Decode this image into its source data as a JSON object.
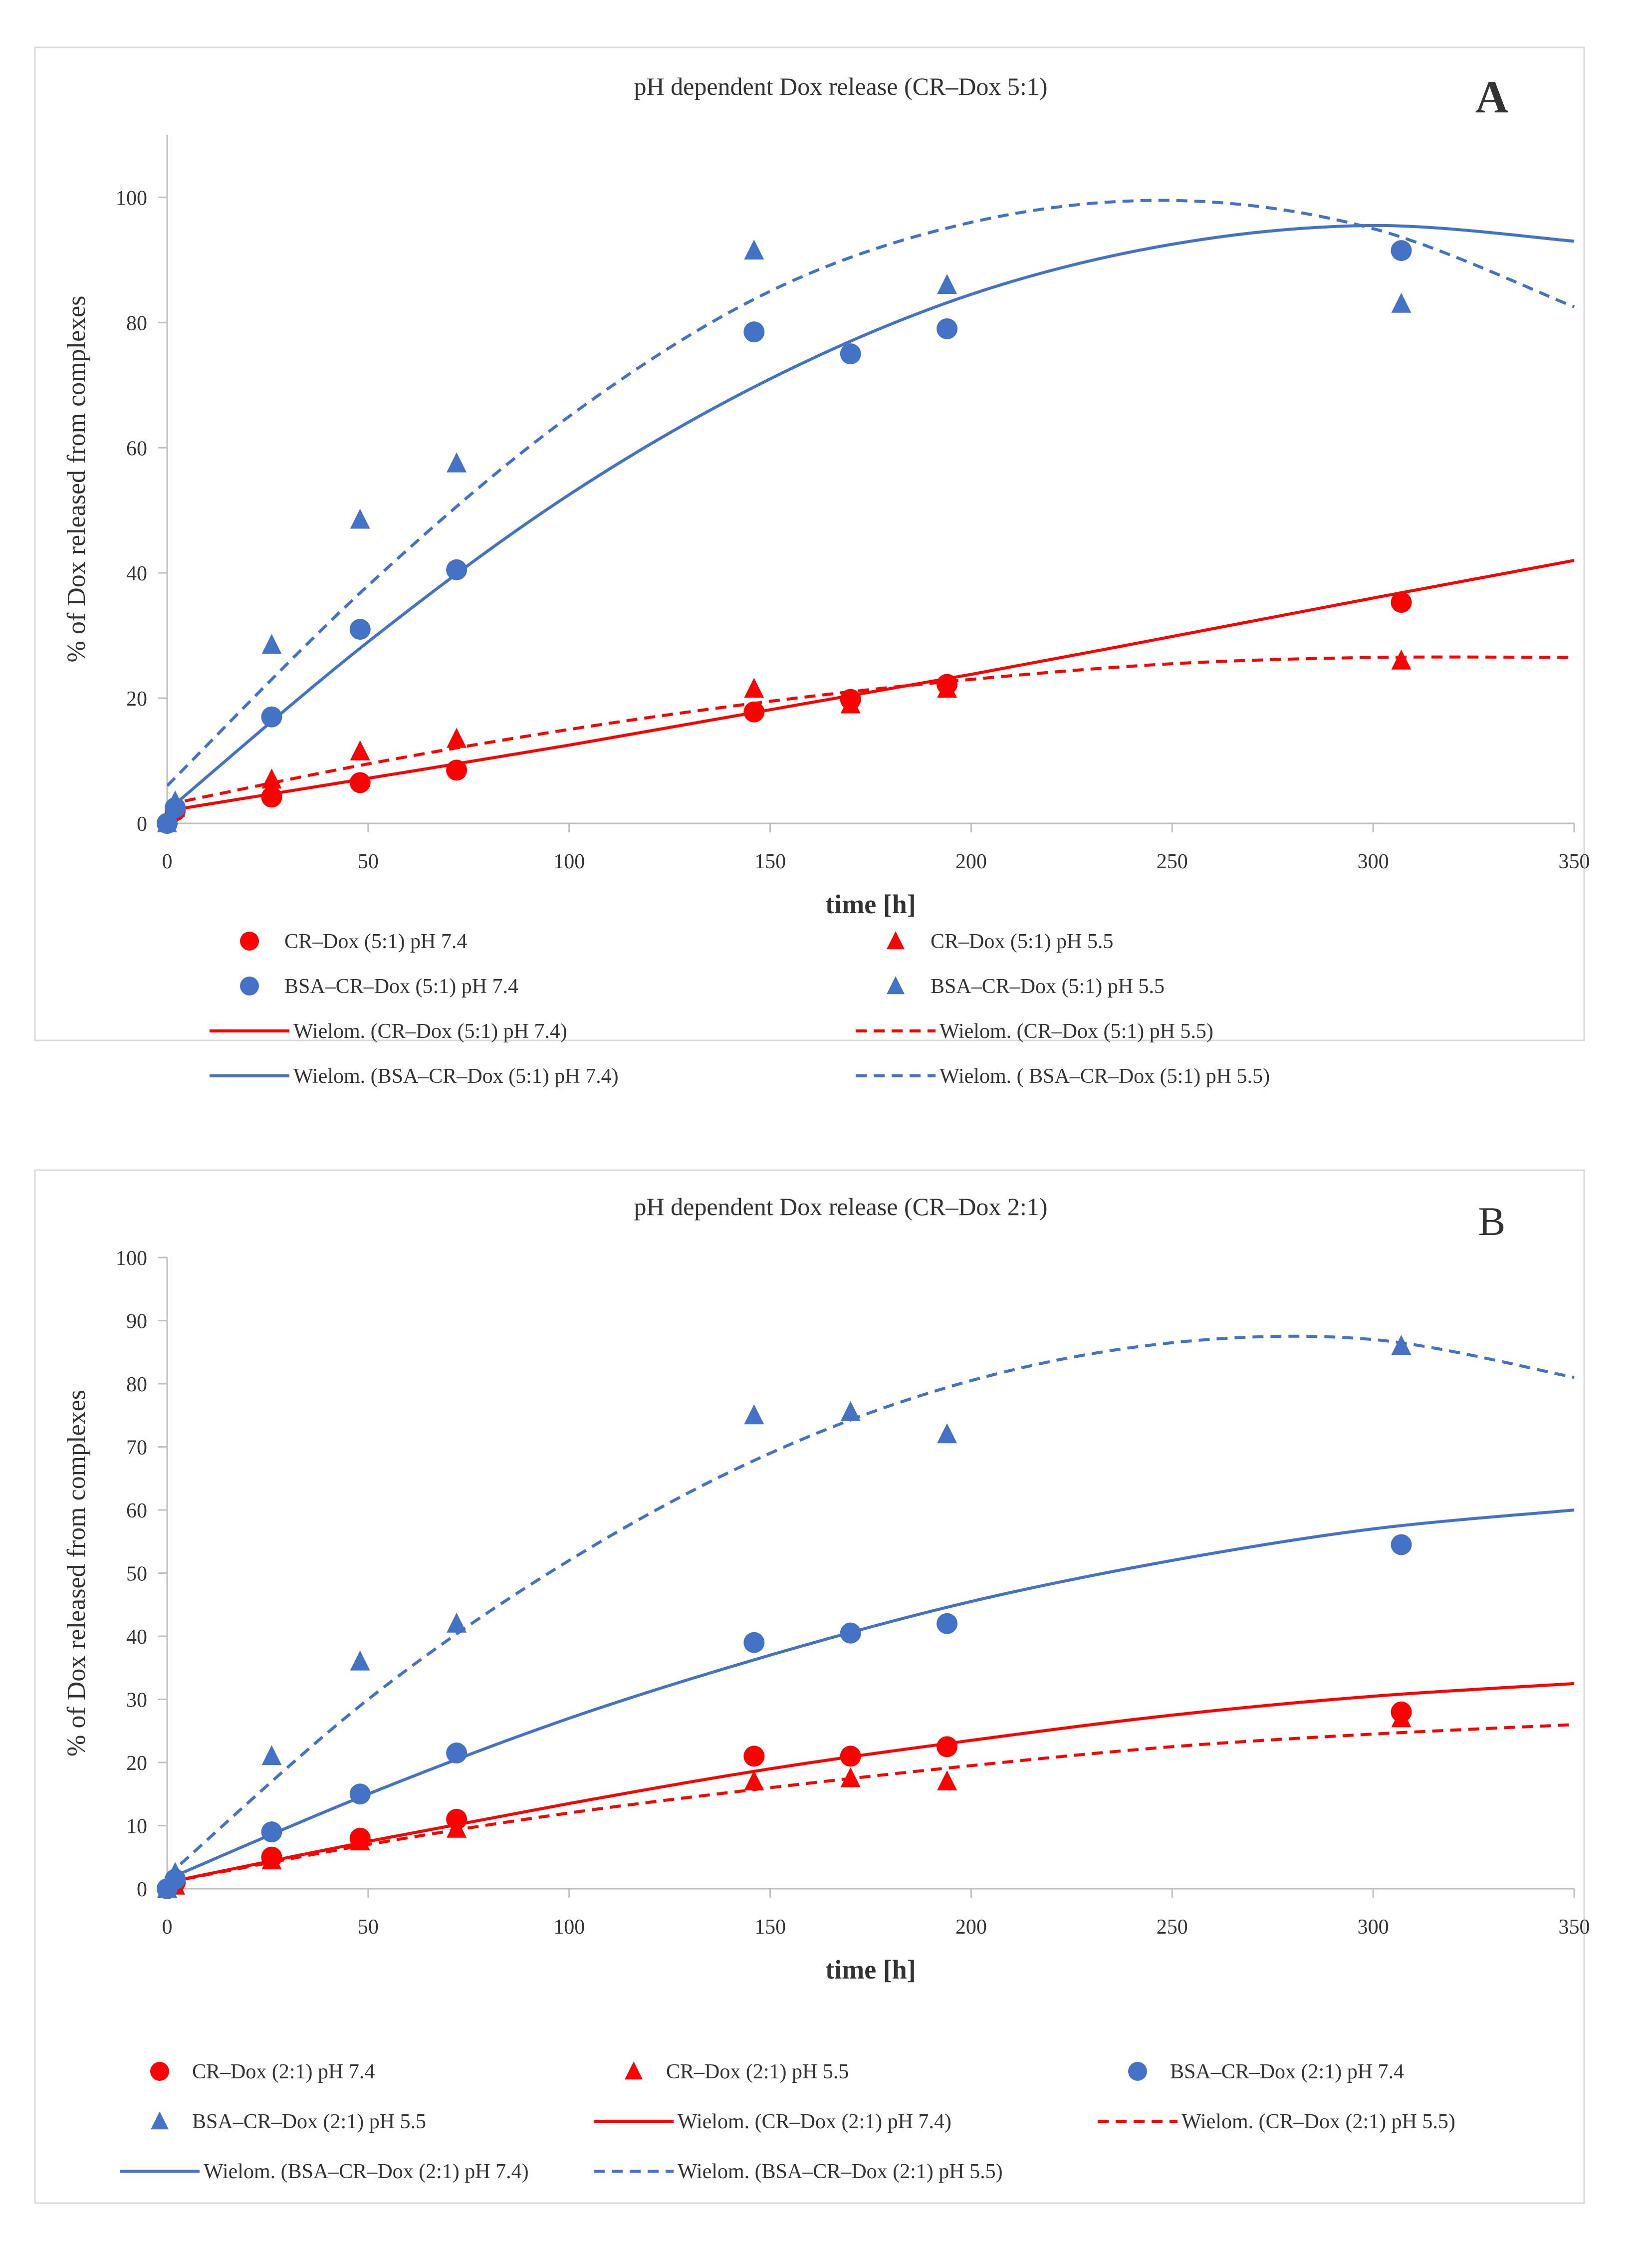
{
  "colors": {
    "red": "#ff0000",
    "blue": "#4472c4",
    "axis": "#bfbfbf",
    "text": "#333333",
    "border": "#d9d9d9"
  },
  "chart_data": [
    {
      "type": "scatter",
      "panel_label": "A",
      "title": "pH dependent Dox release (CR–Dox 5:1)",
      "xlabel": "time [h]",
      "ylabel": "% of Dox released from complexes",
      "xlim": [
        0,
        350
      ],
      "ylim": [
        0,
        110
      ],
      "xticks": [
        0,
        50,
        100,
        150,
        200,
        250,
        300,
        350
      ],
      "yticks": [
        0,
        20,
        40,
        60,
        80,
        100
      ],
      "grid": false,
      "legend_position": "bottom",
      "series": [
        {
          "name": "CR–Dox (5:1) pH 7.4",
          "kind": "points",
          "marker": "circle",
          "color": "#ff0000",
          "x": [
            0,
            2,
            26,
            48,
            72,
            146,
            170,
            194,
            307
          ],
          "y": [
            0,
            2,
            4.2,
            6.5,
            8.5,
            17.8,
            19.8,
            22.2,
            35.3
          ]
        },
        {
          "name": "CR–Dox (5:1) pH 5.5",
          "kind": "points",
          "marker": "triangle",
          "color": "#ff0000",
          "x": [
            0,
            2,
            26,
            48,
            72,
            146,
            170,
            194,
            307
          ],
          "y": [
            0,
            2.5,
            7,
            11.5,
            13.5,
            21.5,
            19,
            21.5,
            26
          ]
        },
        {
          "name": "BSA–CR–Dox (5:1) pH 7.4",
          "kind": "points",
          "marker": "circle",
          "color": "#4472c4",
          "x": [
            0,
            2,
            26,
            48,
            72,
            146,
            170,
            194,
            307
          ],
          "y": [
            0,
            2.5,
            17,
            31,
            40.5,
            78.5,
            75,
            79,
            91.5
          ]
        },
        {
          "name": "BSA–CR–Dox (5:1) pH 5.5",
          "kind": "points",
          "marker": "triangle",
          "color": "#4472c4",
          "x": [
            0,
            2,
            26,
            48,
            72,
            146,
            194,
            307
          ],
          "y": [
            0,
            3.5,
            28.5,
            48.5,
            57.5,
            91.5,
            86,
            83
          ]
        },
        {
          "name": "Wielom. (CR–Dox (5:1) pH 7.4)",
          "kind": "fit",
          "dash": "solid",
          "color": "#ff0000",
          "x": [
            0,
            100,
            200,
            300,
            350
          ],
          "y": [
            2,
            12.5,
            23.8,
            36,
            42
          ]
        },
        {
          "name": "Wielom. (CR–Dox (5:1) pH 5.5)",
          "kind": "fit",
          "dash": "dashed",
          "color": "#ff0000",
          "x": [
            0,
            50,
            100,
            150,
            200,
            250,
            300,
            350
          ],
          "y": [
            3,
            9.5,
            15,
            19.5,
            23,
            25.5,
            26.5,
            26.5
          ]
        },
        {
          "name": "Wielom. (BSA–CR–Dox (5:1) pH 7.4)",
          "kind": "fit",
          "dash": "solid",
          "color": "#4472c4",
          "x": [
            0,
            50,
            100,
            150,
            200,
            250,
            300,
            350
          ],
          "y": [
            2,
            29,
            52.5,
            71,
            84.5,
            92.5,
            95.5,
            93
          ]
        },
        {
          "name": "Wielom. ( BSA–CR–Dox (5:1) pH 5.5)",
          "kind": "fit",
          "dash": "dashed",
          "color": "#4472c4",
          "x": [
            0,
            50,
            100,
            150,
            200,
            250,
            300,
            350
          ],
          "y": [
            6,
            38,
            65,
            85,
            96,
            99.5,
            95,
            82.5
          ]
        }
      ]
    },
    {
      "type": "scatter",
      "panel_label": "B",
      "title": "pH dependent Dox release (CR–Dox 2:1)",
      "xlabel": "time [h]",
      "ylabel": "% of Dox released from complexes",
      "xlim": [
        0,
        350
      ],
      "ylim": [
        0,
        100
      ],
      "xticks": [
        0,
        50,
        100,
        150,
        200,
        250,
        300,
        350
      ],
      "yticks": [
        0,
        10,
        20,
        30,
        40,
        50,
        60,
        70,
        80,
        90,
        100
      ],
      "grid": false,
      "legend_position": "bottom",
      "series": [
        {
          "name": "CR–Dox (2:1) pH 7.4",
          "kind": "points",
          "marker": "circle",
          "color": "#ff0000",
          "x": [
            0,
            2,
            26,
            48,
            72,
            146,
            170,
            194,
            307
          ],
          "y": [
            0,
            1,
            5,
            8,
            11,
            21,
            21,
            22.5,
            28
          ]
        },
        {
          "name": "CR–Dox (2:1) pH 5.5",
          "kind": "points",
          "marker": "triangle",
          "color": "#ff0000",
          "x": [
            0,
            2,
            26,
            48,
            72,
            146,
            170,
            194,
            307
          ],
          "y": [
            0,
            0.5,
            4.5,
            7.5,
            9.5,
            17,
            17.5,
            17,
            27
          ]
        },
        {
          "name": "BSA–CR–Dox (2:1) pH 7.4",
          "kind": "points",
          "marker": "circle",
          "color": "#4472c4",
          "x": [
            0,
            2,
            26,
            48,
            72,
            146,
            170,
            194,
            307
          ],
          "y": [
            0,
            1.5,
            9,
            15,
            21.5,
            39,
            40.5,
            42,
            54.5
          ]
        },
        {
          "name": "BSA–CR–Dox (2:1) pH 5.5",
          "kind": "points",
          "marker": "triangle",
          "color": "#4472c4",
          "x": [
            0,
            2,
            26,
            48,
            72,
            146,
            170,
            194,
            307
          ],
          "y": [
            0,
            2.5,
            21,
            36,
            42,
            75,
            75.5,
            72,
            86
          ]
        },
        {
          "name": "Wielom. (CR–Dox (2:1) pH 7.4)",
          "kind": "fit",
          "dash": "solid",
          "color": "#ff0000",
          "x": [
            0,
            50,
            100,
            150,
            200,
            250,
            300,
            350
          ],
          "y": [
            1,
            7.5,
            13.5,
            19,
            23.5,
            27.5,
            30.5,
            32.5
          ]
        },
        {
          "name": "Wielom. (CR–Dox (2:1) pH 5.5)",
          "kind": "fit",
          "dash": "dashed",
          "color": "#ff0000",
          "x": [
            0,
            50,
            100,
            150,
            200,
            250,
            300,
            350
          ],
          "y": [
            1,
            7,
            12,
            16,
            19.5,
            22.5,
            24.5,
            26
          ]
        },
        {
          "name": "Wielom. (BSA–CR–Dox (2:1) pH 7.4)",
          "kind": "fit",
          "dash": "solid",
          "color": "#4472c4",
          "x": [
            0,
            50,
            100,
            150,
            200,
            250,
            300,
            350
          ],
          "y": [
            1.5,
            15,
            27,
            37,
            45.5,
            52,
            57,
            60
          ]
        },
        {
          "name": "Wielom. (BSA–CR–Dox (2:1) pH 5.5)",
          "kind": "fit",
          "dash": "dashed",
          "color": "#4472c4",
          "x": [
            0,
            50,
            100,
            150,
            200,
            250,
            300,
            350
          ],
          "y": [
            2,
            30,
            52,
            69,
            80.5,
            86.5,
            87,
            81
          ]
        }
      ]
    }
  ]
}
